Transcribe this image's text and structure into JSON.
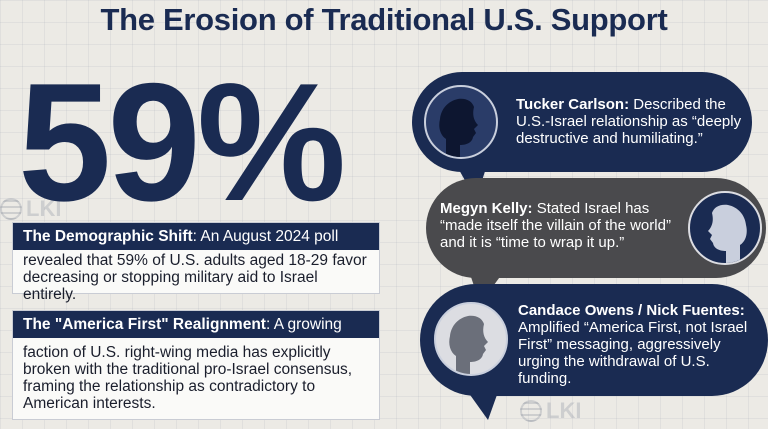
{
  "title": "The Erosion of Traditional U.S. Support",
  "watermark": "LKI",
  "stat": "59%",
  "boxes": [
    {
      "heading": "The Demographic Shift",
      "lead": ": An August 2024 poll",
      "body": "revealed that 59% of U.S. adults aged 18-29 favor decreasing or stopping military aid to Israel entirely."
    },
    {
      "heading": "The \"America First\" Realignment",
      "lead": ": A growing",
      "body": "faction of U.S. right-wing media has explicitly broken with the traditional pro-Israel consensus, framing the relationship as contradictory to American interests."
    }
  ],
  "quotes": [
    {
      "name": "Tucker Carlson",
      "text": " Described the U.S.-Israel relationship as “deeply destructive and humiliating.”",
      "color": "#1a2b52"
    },
    {
      "name": "Megyn Kelly",
      "text": " Stated Israel has “made itself the villain of the world” and it is “time to wrap it up.”",
      "color": "#4a4a4d"
    },
    {
      "name": "Candace Owens / Nick Fuentes",
      "text": " Amplified “America First, not Israel First” messaging, aggressively urging the withdrawal of U.S. funding.",
      "color": "#1a2b52"
    }
  ]
}
